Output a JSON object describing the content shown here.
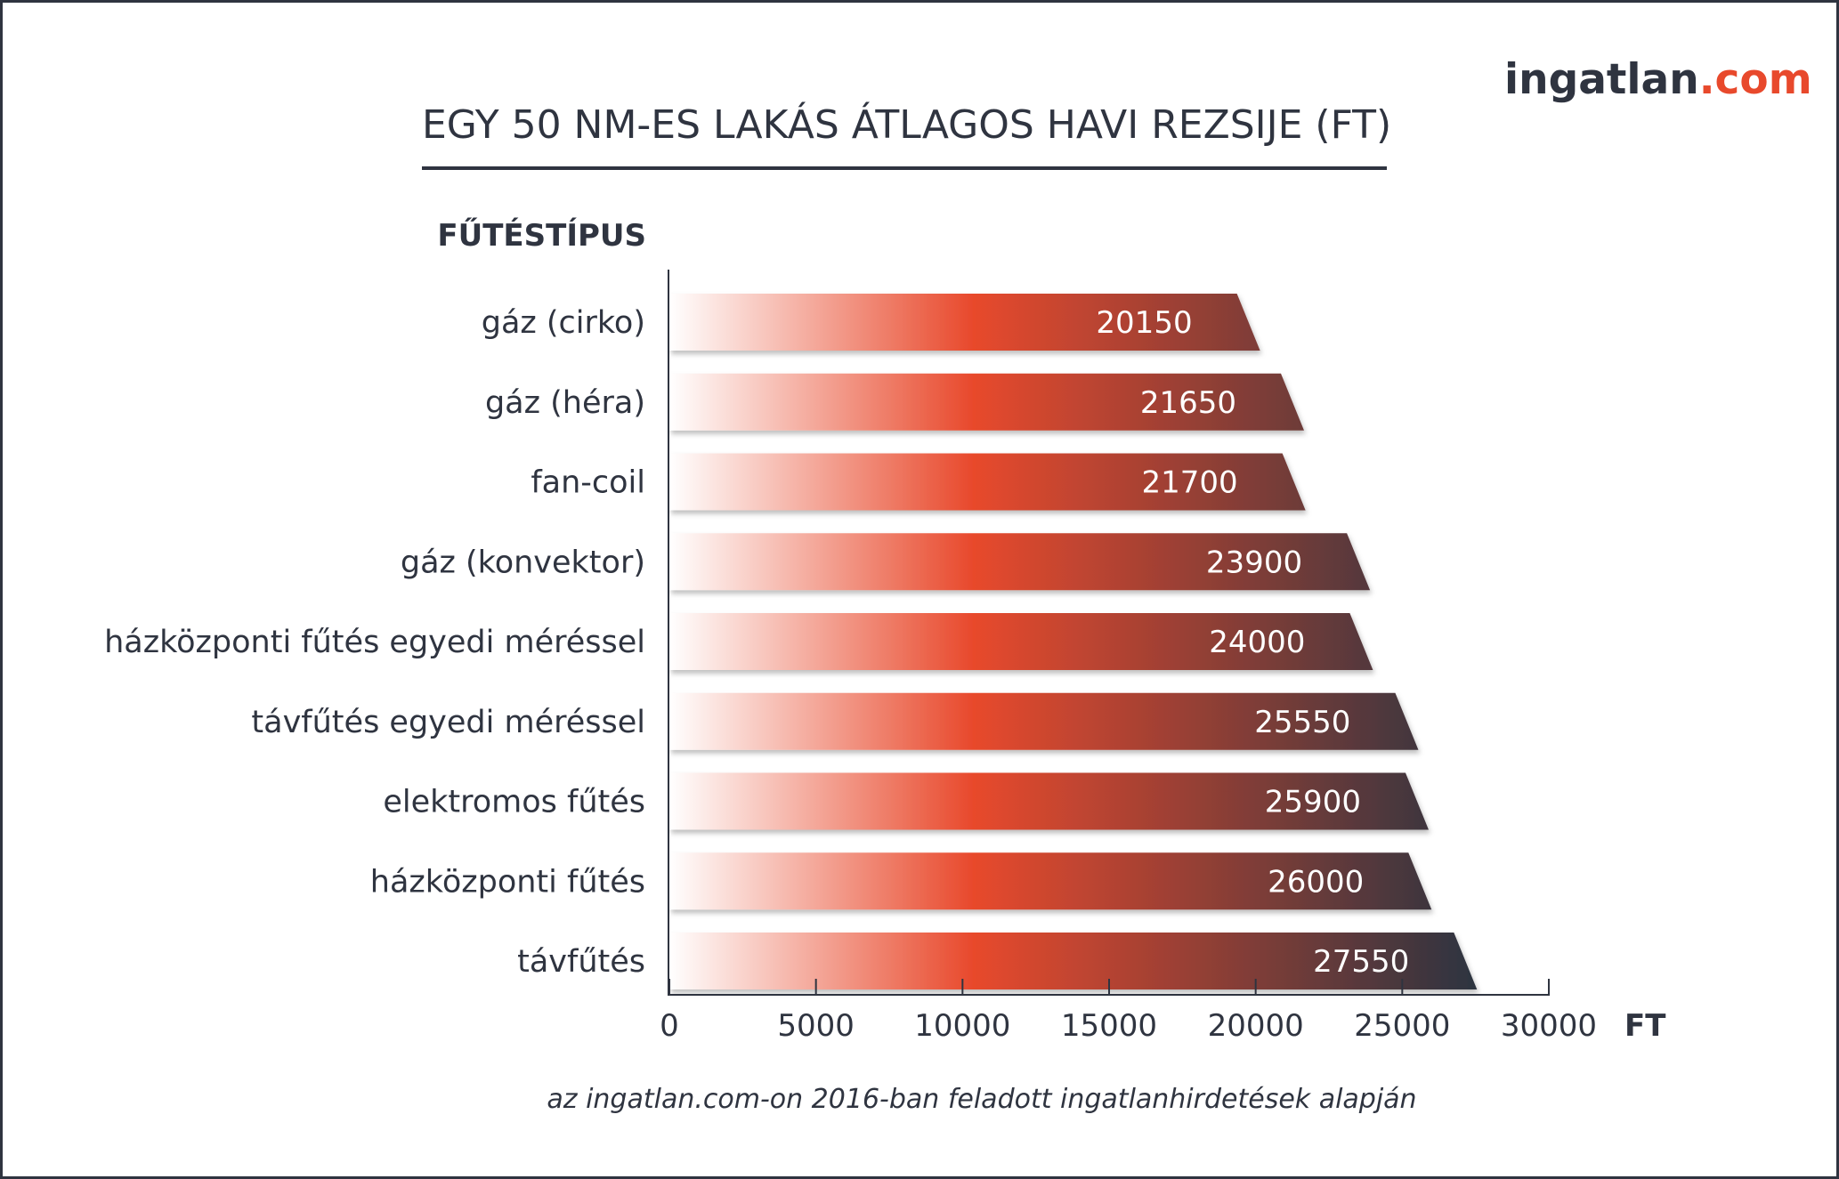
{
  "logo": {
    "main": "ingatlan",
    "accent": ".com"
  },
  "colors": {
    "dark": "#2f3440",
    "accent": "#e8492c",
    "bar_start": "#ffffff",
    "bar_mid": "#e8492c",
    "bar_end": "#2f3440"
  },
  "chart_data": {
    "type": "bar",
    "orientation": "horizontal",
    "title": "EGY 50 NM-ES LAKÁS ÁTLAGOS HAVI REZSIJE (FT)",
    "category_header": "FŰTÉSTÍPUS",
    "xlabel": "FT",
    "ylabel": "",
    "xlim": [
      0,
      30000
    ],
    "ticks": [
      0,
      5000,
      10000,
      15000,
      20000,
      25000,
      30000
    ],
    "grid": false,
    "categories": [
      "gáz (cirko)",
      "gáz (héra)",
      "fan-coil",
      "gáz (konvektor)",
      "házközponti fűtés egyedi méréssel",
      "távfűtés egyedi méréssel",
      "elektromos fűtés",
      "házközponti fűtés",
      "távfűtés"
    ],
    "values": [
      20150,
      21650,
      21700,
      23900,
      24000,
      25550,
      25900,
      26000,
      27550
    ]
  },
  "source": "az ingatlan.com-on 2016-ban feladott ingatlanhirdetések alapján"
}
